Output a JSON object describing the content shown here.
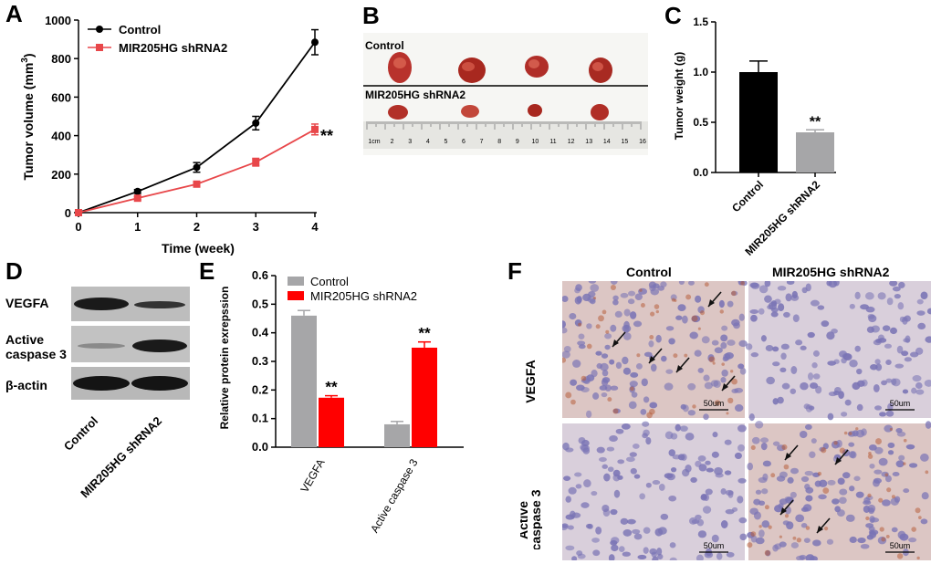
{
  "panels": {
    "A": "A",
    "B": "B",
    "C": "C",
    "D": "D",
    "E": "E",
    "F": "F"
  },
  "colors": {
    "control_black": "#000000",
    "shrna_red": "#e8474a",
    "control_grey": "#a6a6a8",
    "shrna_bright_red": "#ff0000",
    "ihc_bg": "#d8c7cf",
    "nucleus": "#7a74b5",
    "brown_stain": "#b4562f"
  },
  "chart_data": [
    {
      "id": "A",
      "type": "line",
      "xlabel": "Time (week)",
      "ylabel_main": "Tumor volume (mm",
      "ylabel_sup": "3",
      "ylabel_close": ")",
      "x": [
        0,
        1,
        2,
        3,
        4
      ],
      "xlim": [
        0,
        4
      ],
      "ylim": [
        0,
        1000
      ],
      "yticks": [
        "0",
        "200",
        "400",
        "600",
        "800",
        "1000"
      ],
      "xticks": [
        "0",
        "1",
        "2",
        "3",
        "4"
      ],
      "legend_position": "top-left",
      "series": [
        {
          "name": "Control",
          "values": [
            0,
            110,
            235,
            465,
            885
          ],
          "err": [
            0,
            10,
            25,
            35,
            65
          ],
          "color": "#000000",
          "marker": "circle"
        },
        {
          "name": "MIR205HG shRNA2",
          "values": [
            0,
            75,
            148,
            262,
            432
          ],
          "err": [
            0,
            8,
            12,
            20,
            28
          ],
          "color": "#e8474a",
          "marker": "square"
        }
      ],
      "annotation": "**"
    },
    {
      "id": "C",
      "type": "bar",
      "categories": [
        "Control",
        "MIR205HG shRNA2"
      ],
      "values": [
        1.0,
        0.4
      ],
      "err": [
        0.11,
        0.025
      ],
      "colors": [
        "#000000",
        "#a6a6a8"
      ],
      "ylabel": "Tumor weight (g)",
      "ylim": [
        0,
        1.5
      ],
      "yticks": [
        "0.0",
        "0.5",
        "1.0",
        "1.5"
      ],
      "annotation": "**"
    },
    {
      "id": "E",
      "type": "bar",
      "categories": [
        "VEGFA",
        "Active caspase 3"
      ],
      "ylabel": "Relative protein exrepssion",
      "ylim": [
        0,
        0.6
      ],
      "yticks": [
        "0.0",
        "0.1",
        "0.2",
        "0.3",
        "0.4",
        "0.5",
        "0.6"
      ],
      "legend_position": "top-right",
      "series": [
        {
          "name": "Control",
          "values": [
            0.46,
            0.08
          ],
          "err": [
            0.018,
            0.01
          ],
          "color": "#a6a6a8"
        },
        {
          "name": "MIR205HG shRNA2",
          "values": [
            0.173,
            0.348
          ],
          "err": [
            0.007,
            0.02
          ],
          "color": "#ff0000"
        }
      ],
      "annotation": "**"
    }
  ],
  "panel_b": {
    "control_label": "Control",
    "shrna_label": "MIR205HG shRNA2",
    "ruler_numbers": [
      "1cm",
      "2",
      "3",
      "4",
      "5",
      "6",
      "7",
      "8",
      "9",
      "10",
      "11",
      "12",
      "13",
      "14",
      "15",
      "16"
    ]
  },
  "panel_d": {
    "rows": [
      "VEGFA",
      "Active\ncaspase 3",
      "β-actin"
    ],
    "row1": "VEGFA",
    "row2a": "Active",
    "row2b": "caspase 3",
    "row3": "β-actin",
    "col1": "Control",
    "col2": "MIR205HG shRNA2"
  },
  "panel_f": {
    "col1": "Control",
    "col2": "MIR205HG shRNA2",
    "row1": "VEGFA",
    "row2a": "Active",
    "row2b": "caspase 3",
    "scale": "50um"
  }
}
